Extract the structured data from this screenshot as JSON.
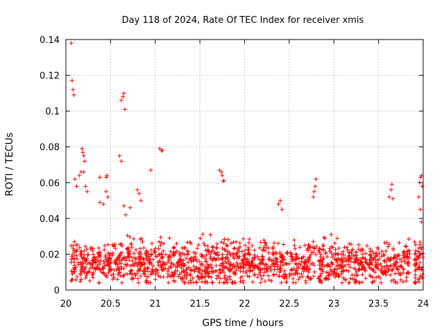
{
  "chart_data": {
    "type": "scatter",
    "title": "Day 118 of 2024, Rate Of TEC Index for receiver xmis",
    "xlabel": "GPS time / hours",
    "ylabel": "ROTI / TECUs",
    "xlim": [
      20,
      24
    ],
    "ylim": [
      0,
      0.14
    ],
    "x_ticks": [
      20,
      20.5,
      21,
      21.5,
      22,
      22.5,
      23,
      23.5,
      24
    ],
    "x_tick_labels": [
      "20",
      "20.5",
      "21",
      "21.5",
      "22",
      "22.5",
      "23",
      "23.5",
      "24"
    ],
    "y_ticks": [
      0,
      0.02,
      0.04,
      0.06,
      0.08,
      0.1,
      0.12,
      0.14
    ],
    "y_tick_labels": [
      "0",
      "0.02",
      "0.04",
      "0.06",
      "0.08",
      "0.1",
      "0.12",
      "0.14"
    ],
    "grid": true,
    "marker": "+",
    "series": [
      {
        "name": "ROTI",
        "color": "#ff0000",
        "points": [
          [
            20.06,
            0.138
          ],
          [
            20.07,
            0.117
          ],
          [
            20.08,
            0.112
          ],
          [
            20.09,
            0.109
          ],
          [
            20.1,
            0.062
          ],
          [
            20.12,
            0.058
          ],
          [
            20.15,
            0.064
          ],
          [
            20.17,
            0.066
          ],
          [
            20.18,
            0.079
          ],
          [
            20.19,
            0.077
          ],
          [
            20.2,
            0.075
          ],
          [
            20.2,
            0.066
          ],
          [
            20.21,
            0.072
          ],
          [
            20.22,
            0.058
          ],
          [
            20.24,
            0.055
          ],
          [
            20.38,
            0.063
          ],
          [
            20.45,
            0.063
          ],
          [
            20.46,
            0.064
          ],
          [
            20.45,
            0.055
          ],
          [
            20.38,
            0.049
          ],
          [
            20.42,
            0.048
          ],
          [
            20.47,
            0.052
          ],
          [
            20.6,
            0.075
          ],
          [
            20.62,
            0.072
          ],
          [
            20.62,
            0.106
          ],
          [
            20.64,
            0.108
          ],
          [
            20.65,
            0.11
          ],
          [
            20.66,
            0.101
          ],
          [
            20.65,
            0.047
          ],
          [
            20.67,
            0.042
          ],
          [
            20.72,
            0.046
          ],
          [
            20.8,
            0.056
          ],
          [
            20.82,
            0.054
          ],
          [
            20.84,
            0.05
          ],
          [
            20.95,
            0.067
          ],
          [
            21.05,
            0.079
          ],
          [
            21.07,
            0.078
          ],
          [
            21.08,
            0.078
          ],
          [
            21.72,
            0.067
          ],
          [
            21.74,
            0.066
          ],
          [
            21.75,
            0.064
          ],
          [
            21.76,
            0.061
          ],
          [
            21.77,
            0.061
          ],
          [
            22.38,
            0.048
          ],
          [
            22.4,
            0.05
          ],
          [
            22.42,
            0.045
          ],
          [
            22.78,
            0.055
          ],
          [
            22.79,
            0.058
          ],
          [
            22.8,
            0.062
          ],
          [
            22.77,
            0.052
          ],
          [
            23.62,
            0.052
          ],
          [
            23.64,
            0.056
          ],
          [
            23.65,
            0.059
          ],
          [
            23.66,
            0.051
          ],
          [
            23.95,
            0.052
          ],
          [
            23.96,
            0.06
          ],
          [
            23.97,
            0.063
          ],
          [
            23.98,
            0.064
          ],
          [
            23.99,
            0.058
          ],
          [
            23.97,
            0.045
          ],
          [
            23.98,
            0.038
          ]
        ]
      }
    ],
    "band": {
      "description": "dense cloud of points between 0.005 and 0.035 across full time range",
      "x_range": [
        20.0,
        24.0
      ],
      "y_min": 0.004,
      "y_max": 0.036,
      "count": 1600,
      "seed": 118
    }
  }
}
